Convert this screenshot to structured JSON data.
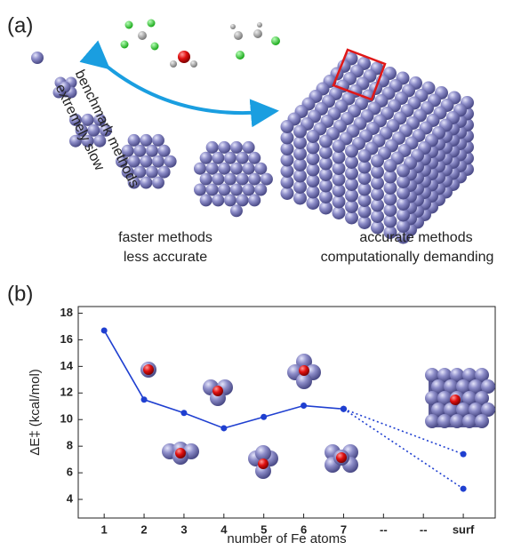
{
  "panel_a": {
    "label": "(a)",
    "left_text": [
      "benchmark methods",
      "extremely slow"
    ],
    "middle_text": [
      "faster methods",
      "less accurate"
    ],
    "right_text": [
      "accurate methods",
      "computationally demanding"
    ]
  },
  "chart_data": {
    "type": "line",
    "panel_label": "(b)",
    "x_label": "number of Fe atoms",
    "y_label": "ΔE‡ (kcal/mol)",
    "xlim": [
      0.35,
      10.8
    ],
    "ylim": [
      2.6,
      18.5
    ],
    "xticks": [
      1,
      2,
      3,
      4,
      5,
      6,
      7,
      {
        "value": 8,
        "label": "--"
      },
      {
        "value": 9,
        "label": "--"
      },
      {
        "value": 10,
        "label": "surf"
      }
    ],
    "yticks": [
      4,
      6,
      8,
      10,
      12,
      14,
      16,
      18
    ],
    "series": [
      {
        "color": "#1f3fd0",
        "linestyle": "solid",
        "x": [
          1,
          2,
          3,
          4,
          5,
          6,
          7
        ],
        "values": [
          16.7,
          11.5,
          10.5,
          9.35,
          10.2,
          11.05,
          10.8
        ]
      },
      {
        "color": "#1f3fd0",
        "linestyle": "dotted",
        "x": [
          7,
          10
        ],
        "values": [
          10.8,
          7.4
        ]
      },
      {
        "color": "#1f3fd0",
        "linestyle": "dotted",
        "x": [
          7,
          10
        ],
        "values": [
          10.8,
          4.8
        ]
      }
    ]
  }
}
